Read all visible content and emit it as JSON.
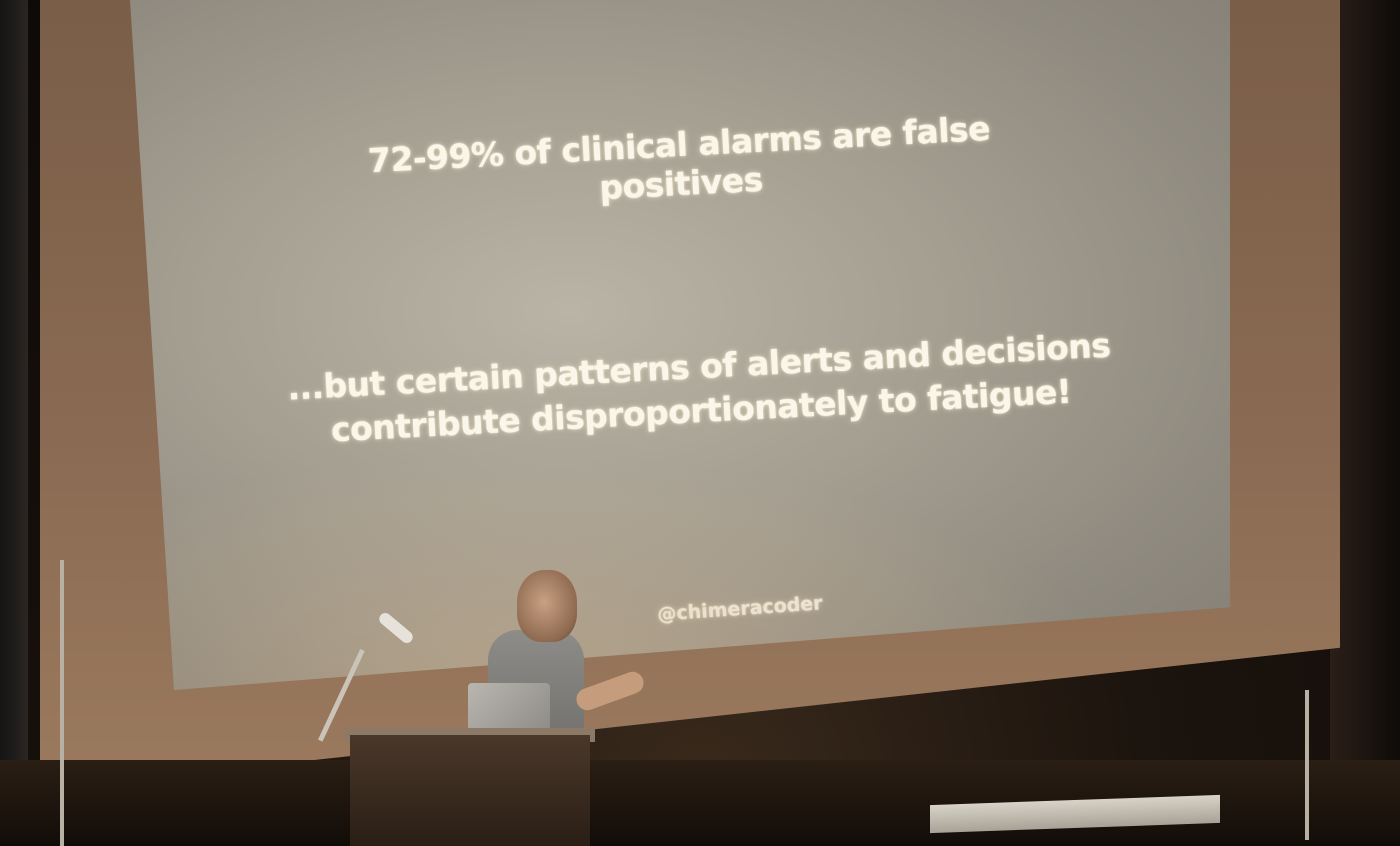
{
  "slide": {
    "headline": "72-99% of clinical alarms are false positives",
    "subline": "...but certain patterns of alerts and decisions contribute disproportionately to fatigue!",
    "handle": "@chimeracoder"
  }
}
